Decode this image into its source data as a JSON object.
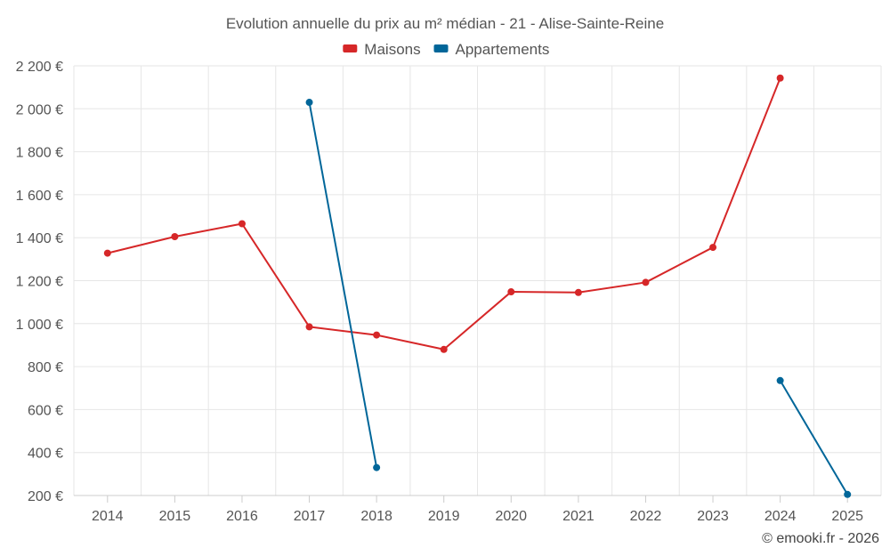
{
  "chart_data": {
    "type": "line",
    "title": "Evolution annuelle du prix au m² médian - 21 - Alise-Sainte-Reine",
    "categories": [
      "2014",
      "2015",
      "2016",
      "2017",
      "2018",
      "2019",
      "2020",
      "2021",
      "2022",
      "2023",
      "2024",
      "2025"
    ],
    "series": [
      {
        "name": "Maisons",
        "color": "#d62728",
        "values": [
          1328,
          1405,
          1465,
          985,
          947,
          880,
          1148,
          1145,
          1192,
          1355,
          2143,
          null
        ]
      },
      {
        "name": "Appartements",
        "color": "#006699",
        "values": [
          null,
          null,
          null,
          2030,
          330,
          null,
          null,
          null,
          null,
          null,
          735,
          205
        ]
      }
    ],
    "ylim": [
      200,
      2200
    ],
    "yticks": [
      200,
      400,
      600,
      800,
      1000,
      1200,
      1400,
      1600,
      1800,
      2000,
      2200
    ],
    "ytick_labels": [
      "200 €",
      "400 €",
      "600 €",
      "800 €",
      "1 000 €",
      "1 200 €",
      "1 400 €",
      "1 600 €",
      "1 800 €",
      "2 000 €",
      "2 200 €"
    ],
    "xlabel": "",
    "ylabel": "",
    "legend_position": "top-center",
    "grid": true
  },
  "credit": "© emooki.fr - 2026"
}
